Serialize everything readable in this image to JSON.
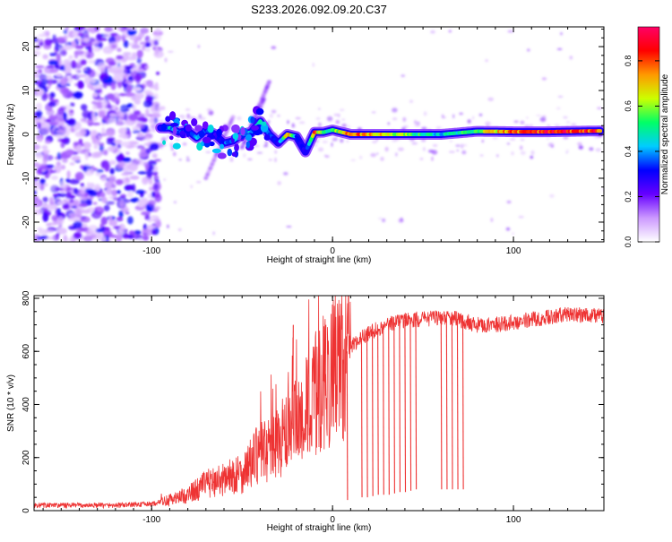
{
  "title": "S233.2026.092.09.20.C37",
  "chart_data": [
    {
      "type": "heatmap",
      "xlabel": "Height of straight line (km)",
      "ylabel": "Frequency (Hz)",
      "xlim": [
        -165,
        150
      ],
      "ylim": [
        -24.5,
        24.5
      ],
      "xticks": [
        -100,
        0,
        100
      ],
      "yticks": [
        -20,
        -10,
        0,
        10,
        20
      ],
      "colorbar": {
        "label": "Normalized spectral amplitude",
        "range": [
          0,
          0.95
        ],
        "ticks": [
          "0.0",
          "0.2",
          "0.4",
          "0.6",
          "0.8"
        ],
        "tick_values": [
          0.0,
          0.2,
          0.4,
          0.6,
          0.8
        ],
        "colors": [
          "#ffffff",
          "#cc99ff",
          "#6600ff",
          "#0000ff",
          "#00ccff",
          "#00ff66",
          "#ccff00",
          "#ff9900",
          "#ff0000",
          "#ff0066"
        ]
      },
      "ridge": {
        "name": "dominant frequency",
        "x": [
          -95,
          -90,
          -85,
          -80,
          -75,
          -70,
          -65,
          -60,
          -55,
          -50,
          -45,
          -40,
          -35,
          -30,
          -25,
          -20,
          -15,
          -10,
          -5,
          0,
          10,
          20,
          40,
          60,
          80,
          100,
          120,
          148
        ],
        "y": [
          1.5,
          1.5,
          0.5,
          0.8,
          -0.8,
          1.0,
          0.0,
          -2.0,
          -1.5,
          0.0,
          0.5,
          3.0,
          0.0,
          -2.0,
          0.0,
          -0.5,
          -4.0,
          0.5,
          0.5,
          1.0,
          0.0,
          0.0,
          0.0,
          0.0,
          0.7,
          0.6,
          0.6,
          0.8
        ],
        "amplitude": [
          0.3,
          0.45,
          0.35,
          0.3,
          0.4,
          0.35,
          0.3,
          0.35,
          0.4,
          0.45,
          0.4,
          0.45,
          0.4,
          0.3,
          0.8,
          0.3,
          0.3,
          0.85,
          0.5,
          0.55,
          0.85,
          0.75,
          0.6,
          0.45,
          0.6,
          0.82,
          0.88,
          0.85
        ]
      }
    },
    {
      "type": "line",
      "xlabel": "Height of straight line (km)",
      "ylabel": "SNR (10 * v/v)",
      "xlim": [
        -165,
        150
      ],
      "ylim": [
        0,
        810
      ],
      "xticks": [
        -100,
        0,
        100
      ],
      "yticks": [
        0,
        200,
        400,
        600,
        800
      ],
      "series": [
        {
          "name": "SNR",
          "color": "#ee3333",
          "x": [
            -165,
            -140,
            -120,
            -100,
            -90,
            -80,
            -70,
            -60,
            -50,
            -40,
            -30,
            -20,
            -10,
            0,
            10,
            20,
            30,
            40,
            50,
            60,
            70,
            80,
            90,
            100,
            110,
            120,
            130,
            140,
            150
          ],
          "y": [
            20,
            20,
            20,
            25,
            40,
            60,
            100,
            120,
            140,
            220,
            260,
            320,
            430,
            520,
            620,
            670,
            700,
            720,
            720,
            730,
            720,
            700,
            700,
            710,
            720,
            730,
            740,
            740,
            730
          ],
          "spikes": [
            {
              "x": -22,
              "y": 700
            },
            {
              "x": -4,
              "y": 700
            },
            {
              "x": 8,
              "y": 40
            },
            {
              "x": 16,
              "y": 50
            },
            {
              "x": 19,
              "y": 50
            },
            {
              "x": 22,
              "y": 55
            },
            {
              "x": 25,
              "y": 60
            },
            {
              "x": 28,
              "y": 60
            },
            {
              "x": 31,
              "y": 60
            },
            {
              "x": 34,
              "y": 65
            },
            {
              "x": 37,
              "y": 70
            },
            {
              "x": 40,
              "y": 70
            },
            {
              "x": 43,
              "y": 75
            },
            {
              "x": 46,
              "y": 80
            },
            {
              "x": 60,
              "y": 80
            },
            {
              "x": 63,
              "y": 80
            },
            {
              "x": 66,
              "y": 80
            },
            {
              "x": 69,
              "y": 80
            },
            {
              "x": 72,
              "y": 80
            }
          ]
        }
      ]
    }
  ]
}
